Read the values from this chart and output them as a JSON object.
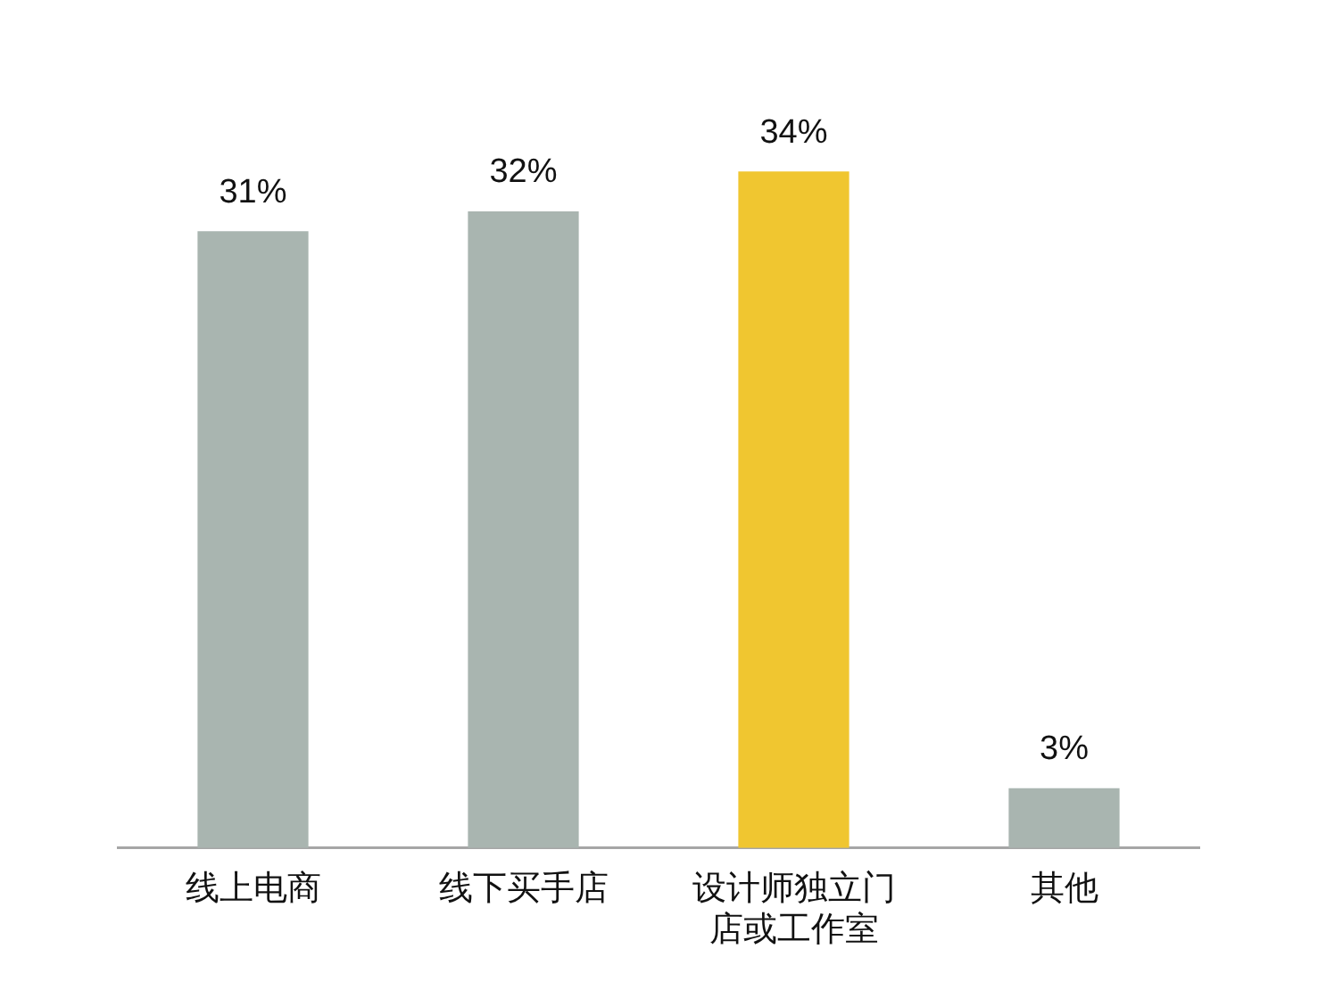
{
  "chart_data": {
    "type": "bar",
    "categories": [
      "线上电商",
      "线下买手店",
      "设计师独立门店或工作室",
      "其他"
    ],
    "values": [
      31,
      32,
      34,
      3
    ],
    "colors": [
      "#a9b5b0",
      "#a9b5b0",
      "#f0c630",
      "#a9b5b0"
    ],
    "value_labels": [
      "31%",
      "32%",
      "34%",
      "3%"
    ],
    "tick_labels": "x",
    "grid": false,
    "legend": false
  }
}
